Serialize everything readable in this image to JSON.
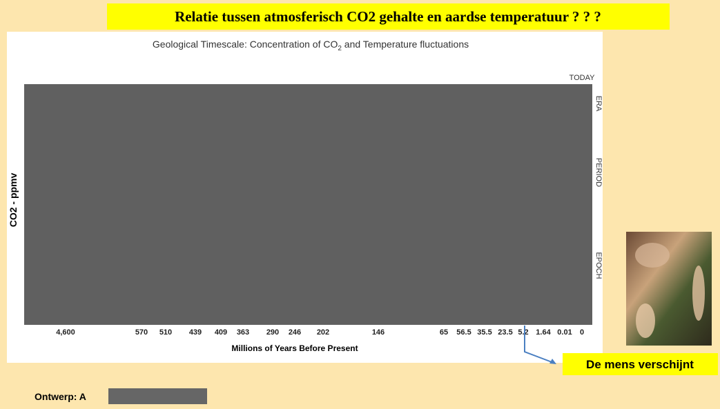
{
  "header": {
    "title": "Relatie tussen atmosferisch CO2 gehalte en aardse temperatuur ? ? ?"
  },
  "figure": {
    "subtitle": [
      "Geological Timescale: Concentration of CO",
      "2",
      " and Temperature fluctuations"
    ],
    "y_label": "CO2 - ppmv",
    "today": "TODAY",
    "side_labels": [
      "ERA",
      "PERIOD",
      "EPOCH"
    ],
    "x_labels": [
      "4,600",
      "570",
      "510",
      "439",
      "409",
      "363",
      "290",
      "246",
      "202",
      "146",
      "65",
      "56.5",
      "35.5",
      "23.5",
      "5.2",
      "1.64",
      "0.01",
      "0"
    ],
    "x_title": "Millions of Years Before Present"
  },
  "callout": "De mens verschijnt",
  "footer": {
    "credit": "Ontwerp: A"
  }
}
